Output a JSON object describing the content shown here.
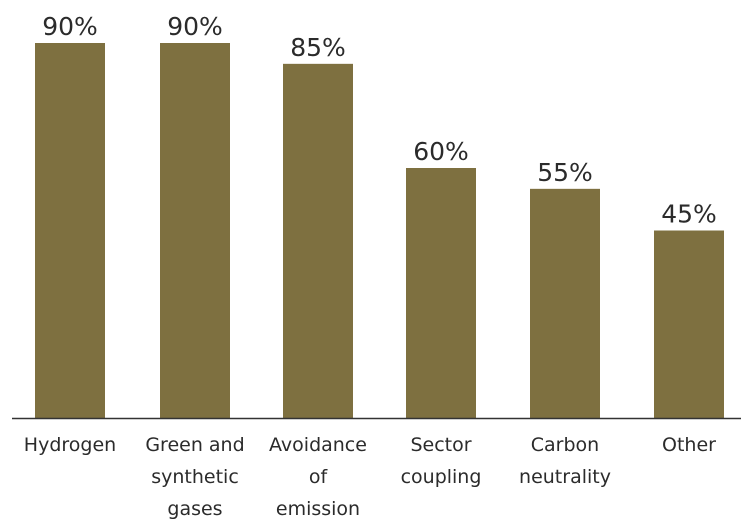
{
  "chart_data": {
    "type": "bar",
    "categories": [
      "Hydrogen",
      "Green and synthetic gases",
      "Avoidance of emission",
      "Sector coupling",
      "Carbon neutrality",
      "Other"
    ],
    "category_lines": [
      [
        "Hydrogen"
      ],
      [
        "Green and",
        "synthetic",
        "gases"
      ],
      [
        "Avoidance",
        "of",
        "emission"
      ],
      [
        "Sector",
        "coupling"
      ],
      [
        "Carbon",
        "neutrality"
      ],
      [
        "Other"
      ]
    ],
    "values": [
      90,
      90,
      85,
      60,
      55,
      45
    ],
    "value_labels": [
      "90%",
      "90%",
      "85%",
      "60%",
      "55%",
      "45%"
    ],
    "ylim": [
      0,
      100
    ],
    "grid": false,
    "bar_color": "#7e7040",
    "axis_color": "#333333"
  }
}
